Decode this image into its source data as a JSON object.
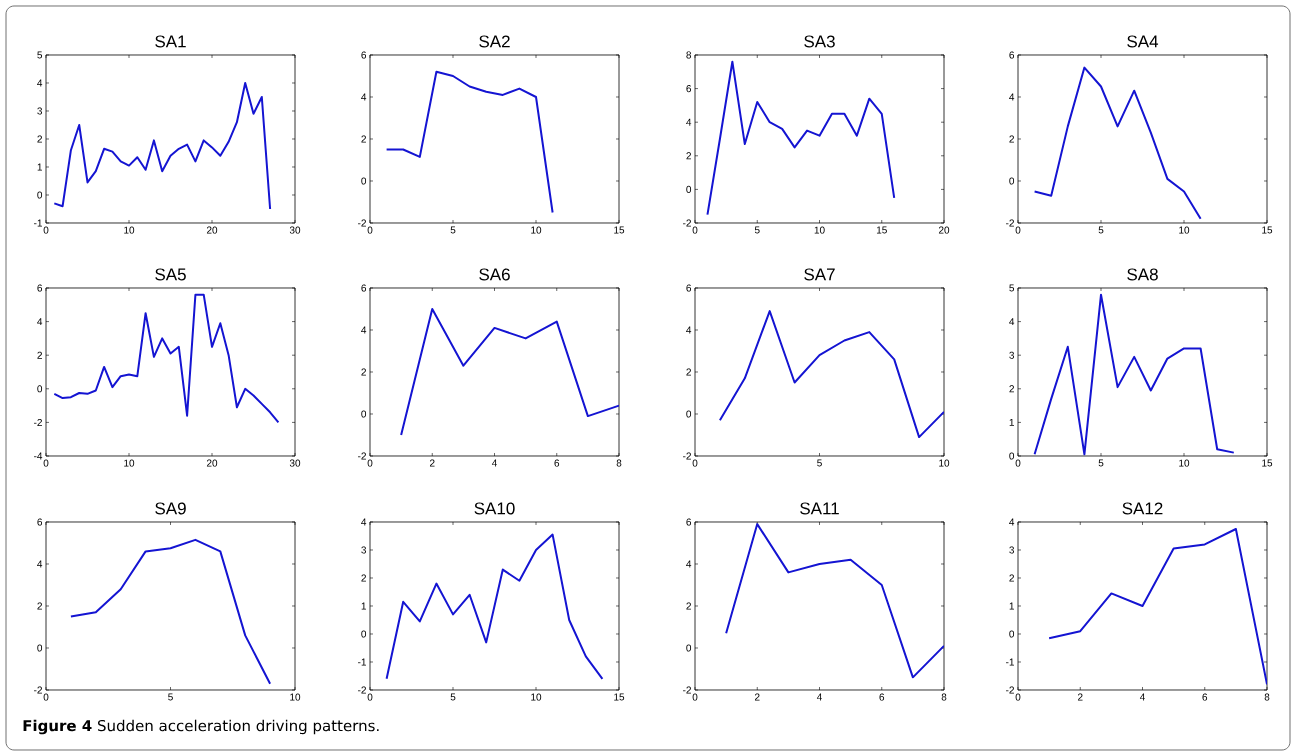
{
  "chart_data": [
    {
      "type": "line",
      "title": "SA1",
      "color": "#1414d2",
      "xlim": [
        0,
        30
      ],
      "xticks": [
        0,
        10,
        20,
        30
      ],
      "ylim": [
        -1,
        5
      ],
      "yticks": [
        -1,
        0,
        1,
        2,
        3,
        4,
        5
      ],
      "x": [
        1,
        2,
        3,
        4,
        5,
        6,
        7,
        8,
        9,
        10,
        11,
        12,
        13,
        14,
        15,
        16,
        17,
        18,
        19,
        20,
        21,
        22,
        23,
        24,
        25,
        26,
        27
      ],
      "values": [
        -0.3,
        -0.4,
        1.6,
        2.5,
        0.45,
        0.85,
        1.65,
        1.55,
        1.2,
        1.05,
        1.35,
        0.9,
        1.95,
        0.85,
        1.4,
        1.65,
        1.8,
        1.2,
        1.95,
        1.7,
        1.4,
        1.9,
        2.6,
        4.0,
        2.9,
        3.5,
        -0.5
      ]
    },
    {
      "type": "line",
      "title": "SA2",
      "color": "#1414d2",
      "xlim": [
        0,
        15
      ],
      "xticks": [
        0,
        5,
        10,
        15
      ],
      "ylim": [
        -2,
        6
      ],
      "yticks": [
        -2,
        0,
        2,
        4,
        6
      ],
      "x": [
        1,
        2,
        3,
        4,
        5,
        6,
        7,
        8,
        9,
        10,
        11
      ],
      "values": [
        1.5,
        1.5,
        1.15,
        5.2,
        5.0,
        4.5,
        4.25,
        4.1,
        4.4,
        4.0,
        -1.5
      ]
    },
    {
      "type": "line",
      "title": "SA3",
      "color": "#1414d2",
      "xlim": [
        0,
        20
      ],
      "xticks": [
        0,
        5,
        10,
        15,
        20
      ],
      "ylim": [
        -2,
        8
      ],
      "yticks": [
        -2,
        0,
        2,
        4,
        6,
        8
      ],
      "x": [
        1,
        2,
        3,
        4,
        5,
        6,
        7,
        8,
        9,
        10,
        11,
        12,
        13,
        14,
        15,
        16
      ],
      "values": [
        -1.5,
        3.0,
        7.6,
        2.7,
        5.2,
        4.0,
        3.6,
        2.5,
        3.5,
        3.2,
        4.5,
        4.5,
        3.2,
        5.4,
        4.5,
        -0.5
      ]
    },
    {
      "type": "line",
      "title": "SA4",
      "color": "#1414d2",
      "xlim": [
        0,
        15
      ],
      "xticks": [
        0,
        5,
        10,
        15
      ],
      "ylim": [
        -2,
        6
      ],
      "yticks": [
        -2,
        0,
        2,
        4,
        6
      ],
      "x": [
        1,
        2,
        3,
        4,
        5,
        6,
        7,
        8,
        9,
        10,
        11
      ],
      "values": [
        -0.5,
        -0.7,
        2.6,
        5.4,
        4.5,
        2.6,
        4.3,
        2.3,
        0.1,
        -0.5,
        -1.8
      ]
    },
    {
      "type": "line",
      "title": "SA5",
      "color": "#1414d2",
      "xlim": [
        0,
        30
      ],
      "xticks": [
        0,
        10,
        20,
        30
      ],
      "ylim": [
        -4,
        6
      ],
      "yticks": [
        -4,
        -2,
        0,
        2,
        4,
        6
      ],
      "x": [
        1,
        2,
        3,
        4,
        5,
        6,
        7,
        8,
        9,
        10,
        11,
        12,
        13,
        14,
        15,
        16,
        17,
        18,
        19,
        20,
        21,
        22,
        23,
        24,
        25,
        26,
        27,
        28
      ],
      "values": [
        -0.3,
        -0.55,
        -0.5,
        -0.25,
        -0.3,
        -0.1,
        1.3,
        0.1,
        0.75,
        0.85,
        0.75,
        4.5,
        1.9,
        3.0,
        2.1,
        2.5,
        -1.6,
        5.6,
        5.6,
        2.5,
        3.9,
        2.0,
        -1.1,
        0.0,
        -0.4,
        -0.9,
        -1.4,
        -2.0
      ]
    },
    {
      "type": "line",
      "title": "SA6",
      "color": "#1414d2",
      "xlim": [
        0,
        8
      ],
      "xticks": [
        0,
        2,
        4,
        6,
        8
      ],
      "ylim": [
        -2,
        6
      ],
      "yticks": [
        -2,
        0,
        2,
        4,
        6
      ],
      "x": [
        1,
        2,
        3,
        4,
        5,
        6,
        7,
        8
      ],
      "values": [
        -1.0,
        5.0,
        2.3,
        4.1,
        3.6,
        4.4,
        -0.1,
        0.4
      ]
    },
    {
      "type": "line",
      "title": "SA7",
      "color": "#1414d2",
      "xlim": [
        0,
        10
      ],
      "xticks": [
        0,
        5,
        10
      ],
      "ylim": [
        -2,
        6
      ],
      "yticks": [
        -2,
        0,
        2,
        4,
        6
      ],
      "x": [
        1,
        2,
        3,
        4,
        5,
        6,
        7,
        8,
        9,
        10
      ],
      "values": [
        -0.3,
        1.7,
        4.9,
        1.5,
        2.8,
        3.5,
        3.9,
        2.6,
        -1.1,
        0.1
      ]
    },
    {
      "type": "line",
      "title": "SA8",
      "color": "#1414d2",
      "xlim": [
        0,
        15
      ],
      "xticks": [
        0,
        5,
        10,
        15
      ],
      "ylim": [
        0,
        5
      ],
      "yticks": [
        0,
        1,
        2,
        3,
        4,
        5
      ],
      "x": [
        1,
        2,
        3,
        4,
        5,
        6,
        7,
        8,
        9,
        10,
        11,
        12,
        13
      ],
      "values": [
        0.05,
        1.7,
        3.25,
        0.05,
        4.8,
        2.05,
        2.95,
        1.95,
        2.9,
        3.2,
        3.2,
        0.2,
        0.1
      ]
    },
    {
      "type": "line",
      "title": "SA9",
      "color": "#1414d2",
      "xlim": [
        0,
        10
      ],
      "xticks": [
        0,
        5,
        10
      ],
      "ylim": [
        -2,
        6
      ],
      "yticks": [
        -2,
        0,
        2,
        4,
        6
      ],
      "x": [
        1,
        2,
        3,
        4,
        5,
        6,
        7,
        8,
        9
      ],
      "values": [
        1.5,
        1.7,
        2.8,
        4.6,
        4.75,
        5.15,
        4.6,
        0.6,
        -1.7
      ]
    },
    {
      "type": "line",
      "title": "SA10",
      "color": "#1414d2",
      "xlim": [
        0,
        15
      ],
      "xticks": [
        0,
        5,
        10,
        15
      ],
      "ylim": [
        -2,
        4
      ],
      "yticks": [
        -2,
        -1,
        0,
        1,
        2,
        3,
        4
      ],
      "x": [
        1,
        2,
        3,
        4,
        5,
        6,
        7,
        8,
        9,
        10,
        11,
        12,
        13,
        14
      ],
      "values": [
        -1.6,
        1.15,
        0.45,
        1.8,
        0.7,
        1.4,
        -0.3,
        2.3,
        1.9,
        3.0,
        3.55,
        0.5,
        -0.8,
        -1.6
      ]
    },
    {
      "type": "line",
      "title": "SA11",
      "color": "#1414d2",
      "xlim": [
        0,
        8
      ],
      "xticks": [
        0,
        2,
        4,
        6,
        8
      ],
      "ylim": [
        -2,
        6
      ],
      "yticks": [
        -2,
        0,
        2,
        4,
        6
      ],
      "x": [
        1,
        2,
        3,
        4,
        5,
        6,
        7,
        8
      ],
      "values": [
        0.7,
        5.9,
        3.6,
        4.0,
        4.2,
        3.0,
        -1.4,
        0.1
      ]
    },
    {
      "type": "line",
      "title": "SA12",
      "color": "#1414d2",
      "xlim": [
        0,
        8
      ],
      "xticks": [
        0,
        2,
        4,
        6,
        8
      ],
      "ylim": [
        -2,
        4
      ],
      "yticks": [
        -2,
        -1,
        0,
        1,
        2,
        3,
        4
      ],
      "x": [
        1,
        2,
        3,
        4,
        5,
        6,
        7,
        8
      ],
      "values": [
        -0.15,
        0.1,
        1.45,
        1.0,
        3.05,
        3.2,
        3.75,
        -1.8
      ],
      "annotations": [
        "**Figure 4** Sudden acceleration driving patterns."
      ]
    }
  ]
}
